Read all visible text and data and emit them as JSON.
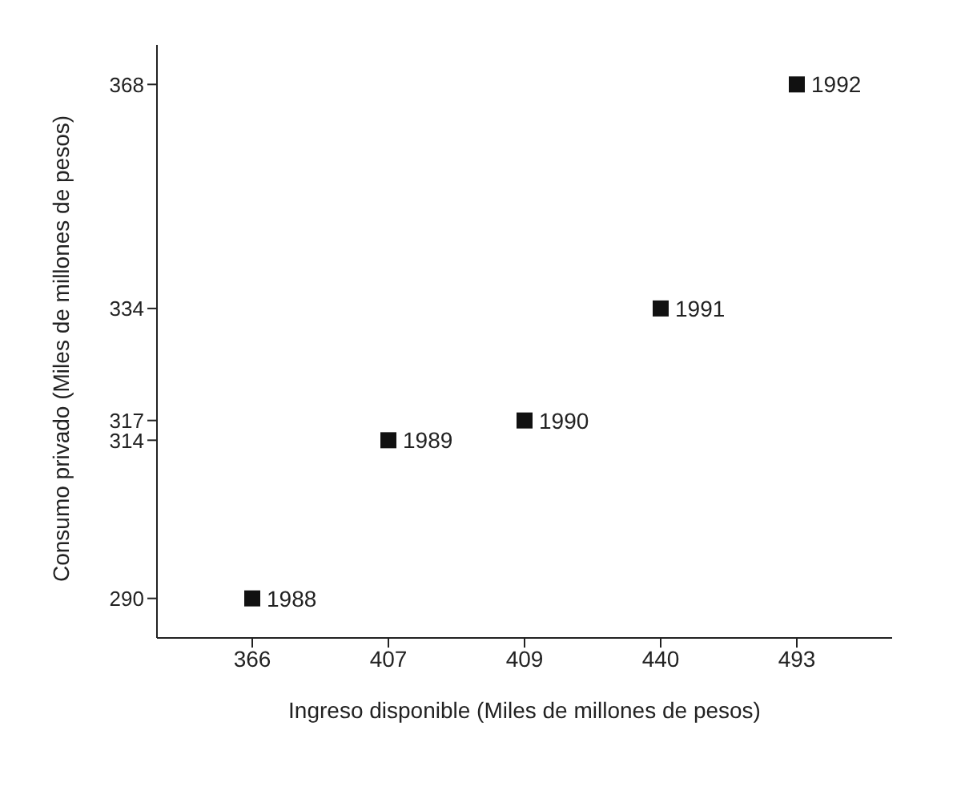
{
  "chart_data": {
    "type": "scatter",
    "xlabel": "Ingreso disponible (Miles de millones de pesos)",
    "ylabel": "Consumo privado (Miles de millones de pesos)",
    "categories": [
      "366",
      "407",
      "409",
      "440",
      "493"
    ],
    "series": [
      {
        "color": "#111111",
        "values": [
          290,
          314,
          317,
          334,
          368
        ]
      }
    ],
    "ylim": [
      284,
      374
    ],
    "yticks": [
      290,
      314,
      317,
      334,
      368
    ],
    "marker": "square",
    "grid": false,
    "legend": false,
    "annotations": [
      {
        "text": "1988",
        "x": "366",
        "y": 290
      },
      {
        "text": "1989",
        "x": "407",
        "y": 314
      },
      {
        "text": "1990",
        "x": "409",
        "y": 317
      },
      {
        "text": "1991",
        "x": "440",
        "y": 334
      },
      {
        "text": "1992",
        "x": "493",
        "y": 368
      }
    ]
  }
}
